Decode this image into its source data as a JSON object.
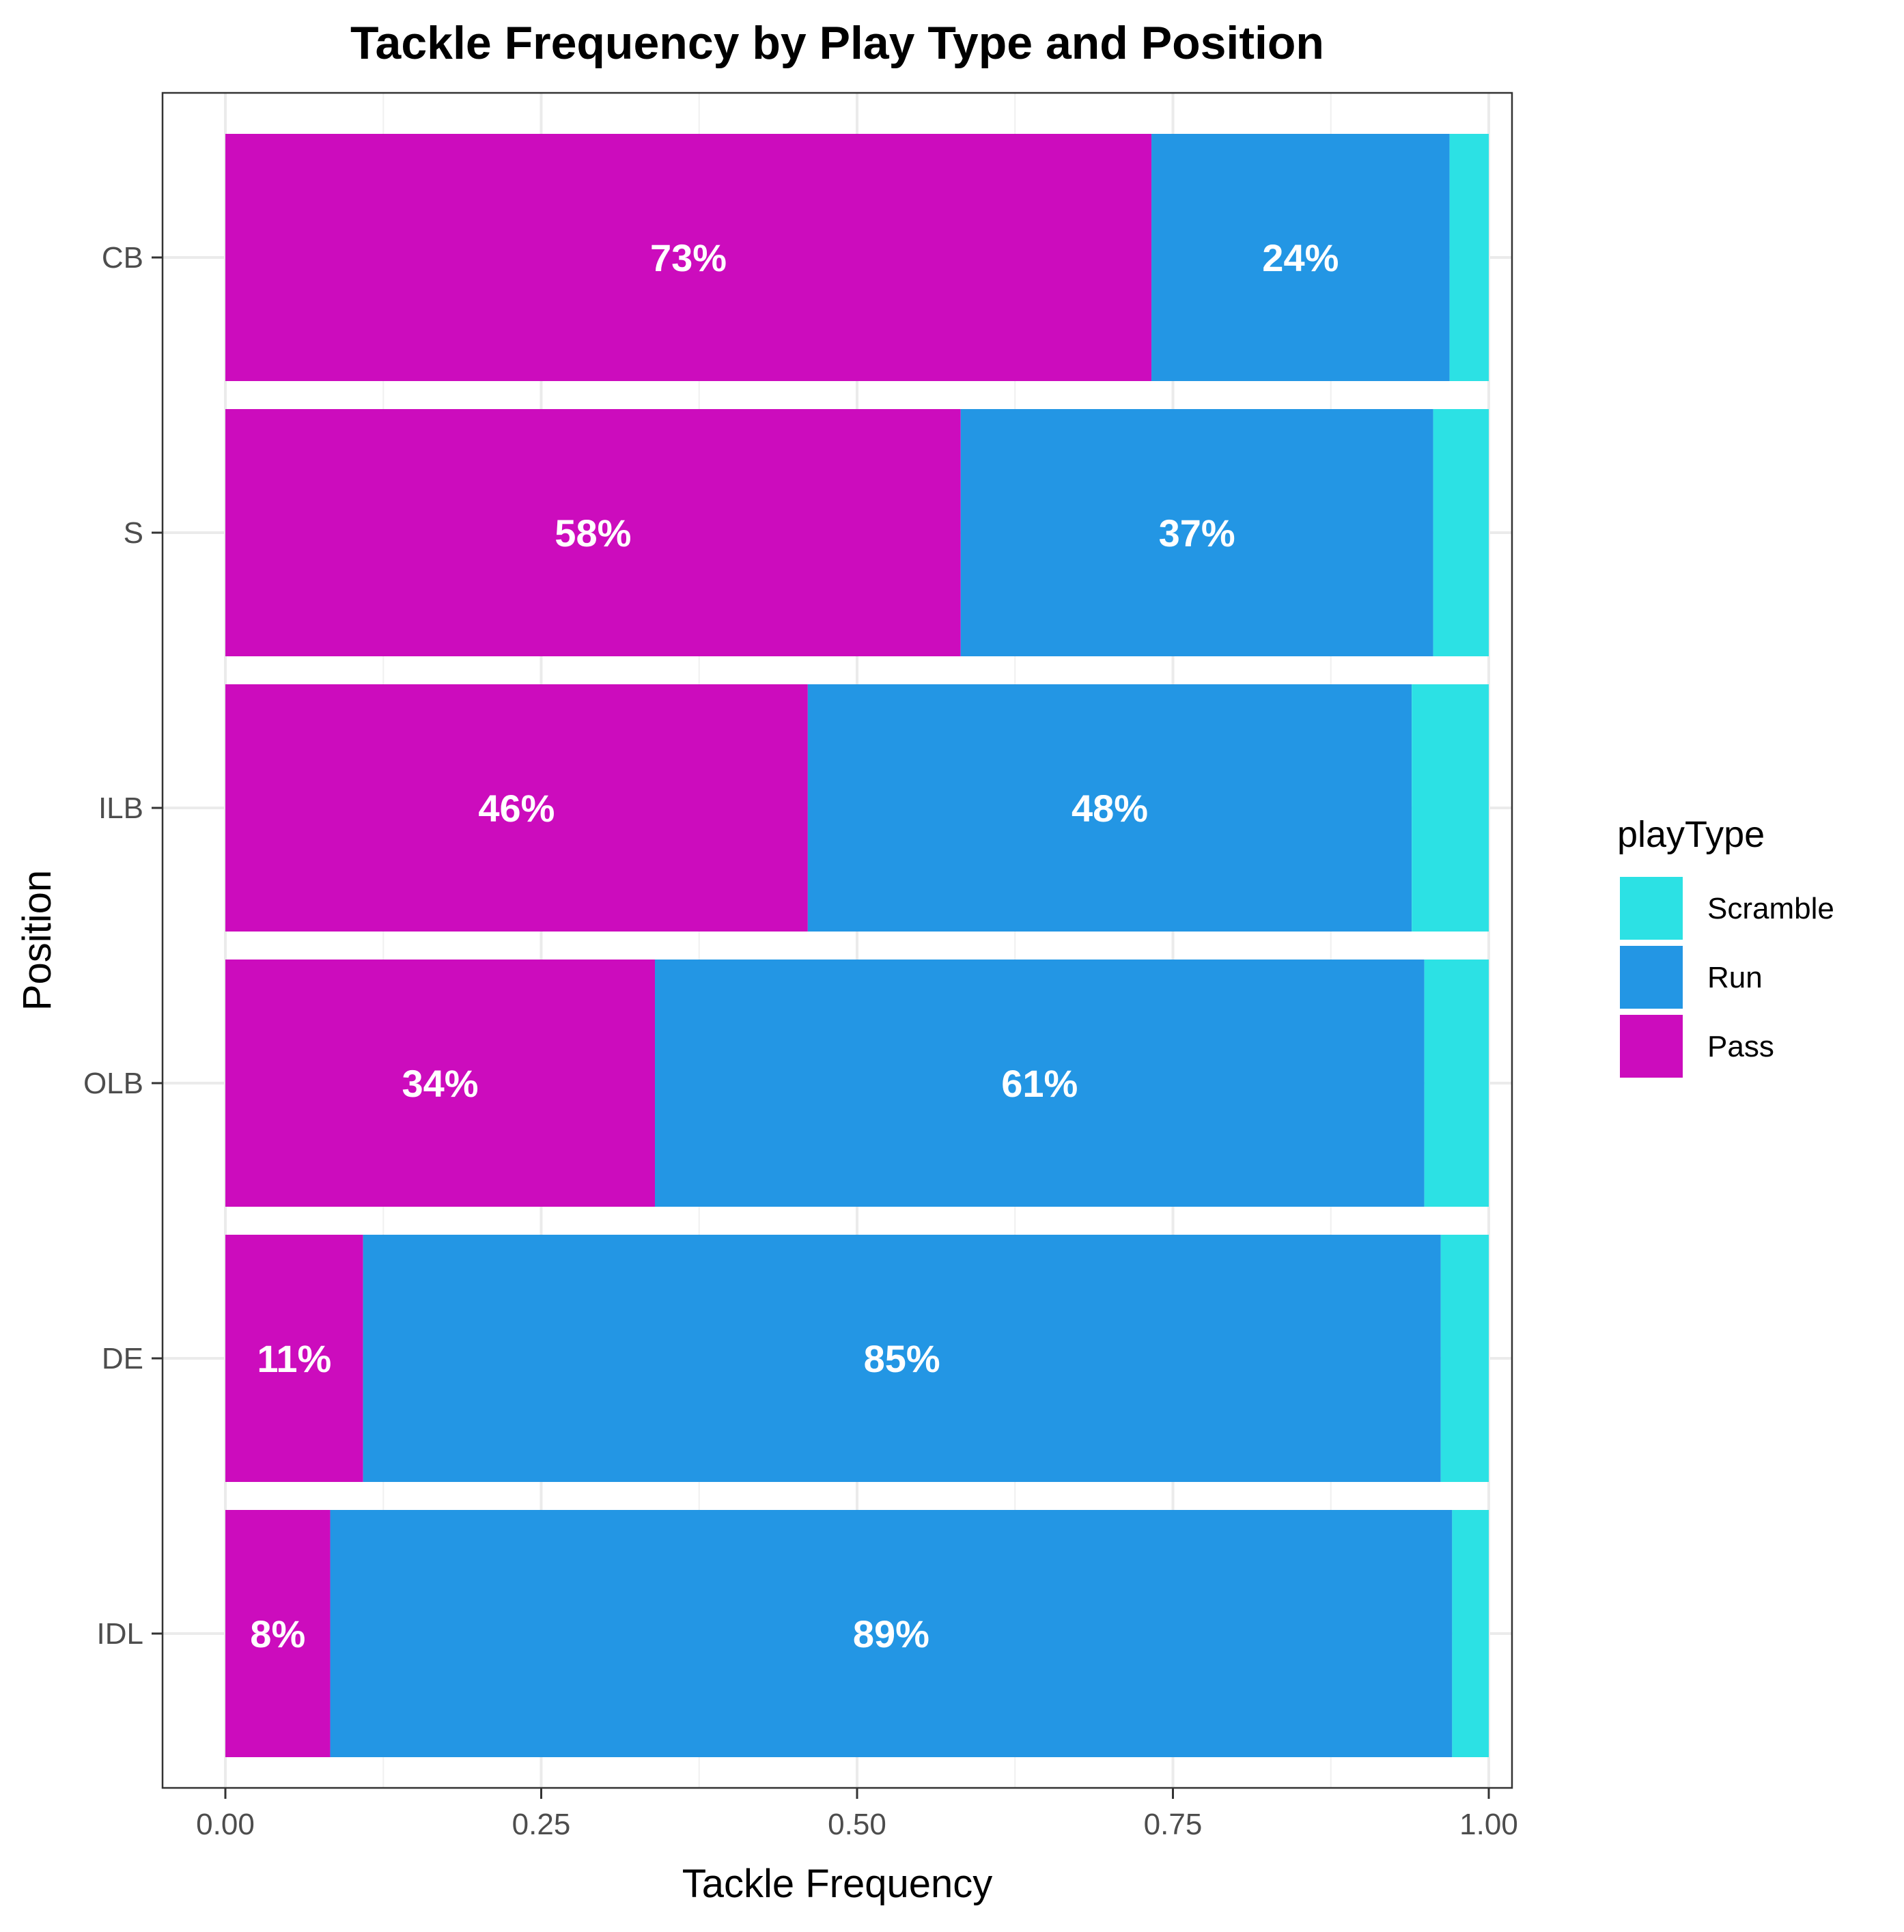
{
  "chart_data": {
    "type": "bar",
    "orientation": "horizontal",
    "stacked": true,
    "title": "Tackle Frequency by Play Type and Position",
    "xlabel": "Tackle Frequency",
    "ylabel": "Position",
    "xlim": [
      0,
      1
    ],
    "x_ticks": [
      "0.00",
      "0.25",
      "0.50",
      "0.75",
      "1.00"
    ],
    "x_tick_values": [
      0,
      0.25,
      0.5,
      0.75,
      1.0
    ],
    "grid": true,
    "categories": [
      "CB",
      "S",
      "ILB",
      "OLB",
      "DE",
      "IDL"
    ],
    "series": [
      {
        "name": "Pass",
        "color": "#cc0cbd",
        "values": [
          0.733,
          0.582,
          0.461,
          0.34,
          0.109,
          0.083
        ],
        "labels": [
          "73%",
          "58%",
          "46%",
          "34%",
          "11%",
          "8%"
        ]
      },
      {
        "name": "Run",
        "color": "#2396e4",
        "values": [
          0.236,
          0.374,
          0.478,
          0.609,
          0.853,
          0.888
        ],
        "labels": [
          "24%",
          "37%",
          "48%",
          "61%",
          "85%",
          "89%"
        ]
      },
      {
        "name": "Scramble",
        "color": "#2ce1e4",
        "values": [
          0.031,
          0.044,
          0.061,
          0.051,
          0.038,
          0.029
        ],
        "labels": [
          "",
          "",
          "",
          "",
          "",
          ""
        ]
      }
    ],
    "legend": {
      "title": "playType",
      "position": "right",
      "items": [
        {
          "label": "Scramble",
          "color": "#2ce1e4"
        },
        {
          "label": "Run",
          "color": "#2396e4"
        },
        {
          "label": "Pass",
          "color": "#cc0cbd"
        }
      ]
    }
  }
}
